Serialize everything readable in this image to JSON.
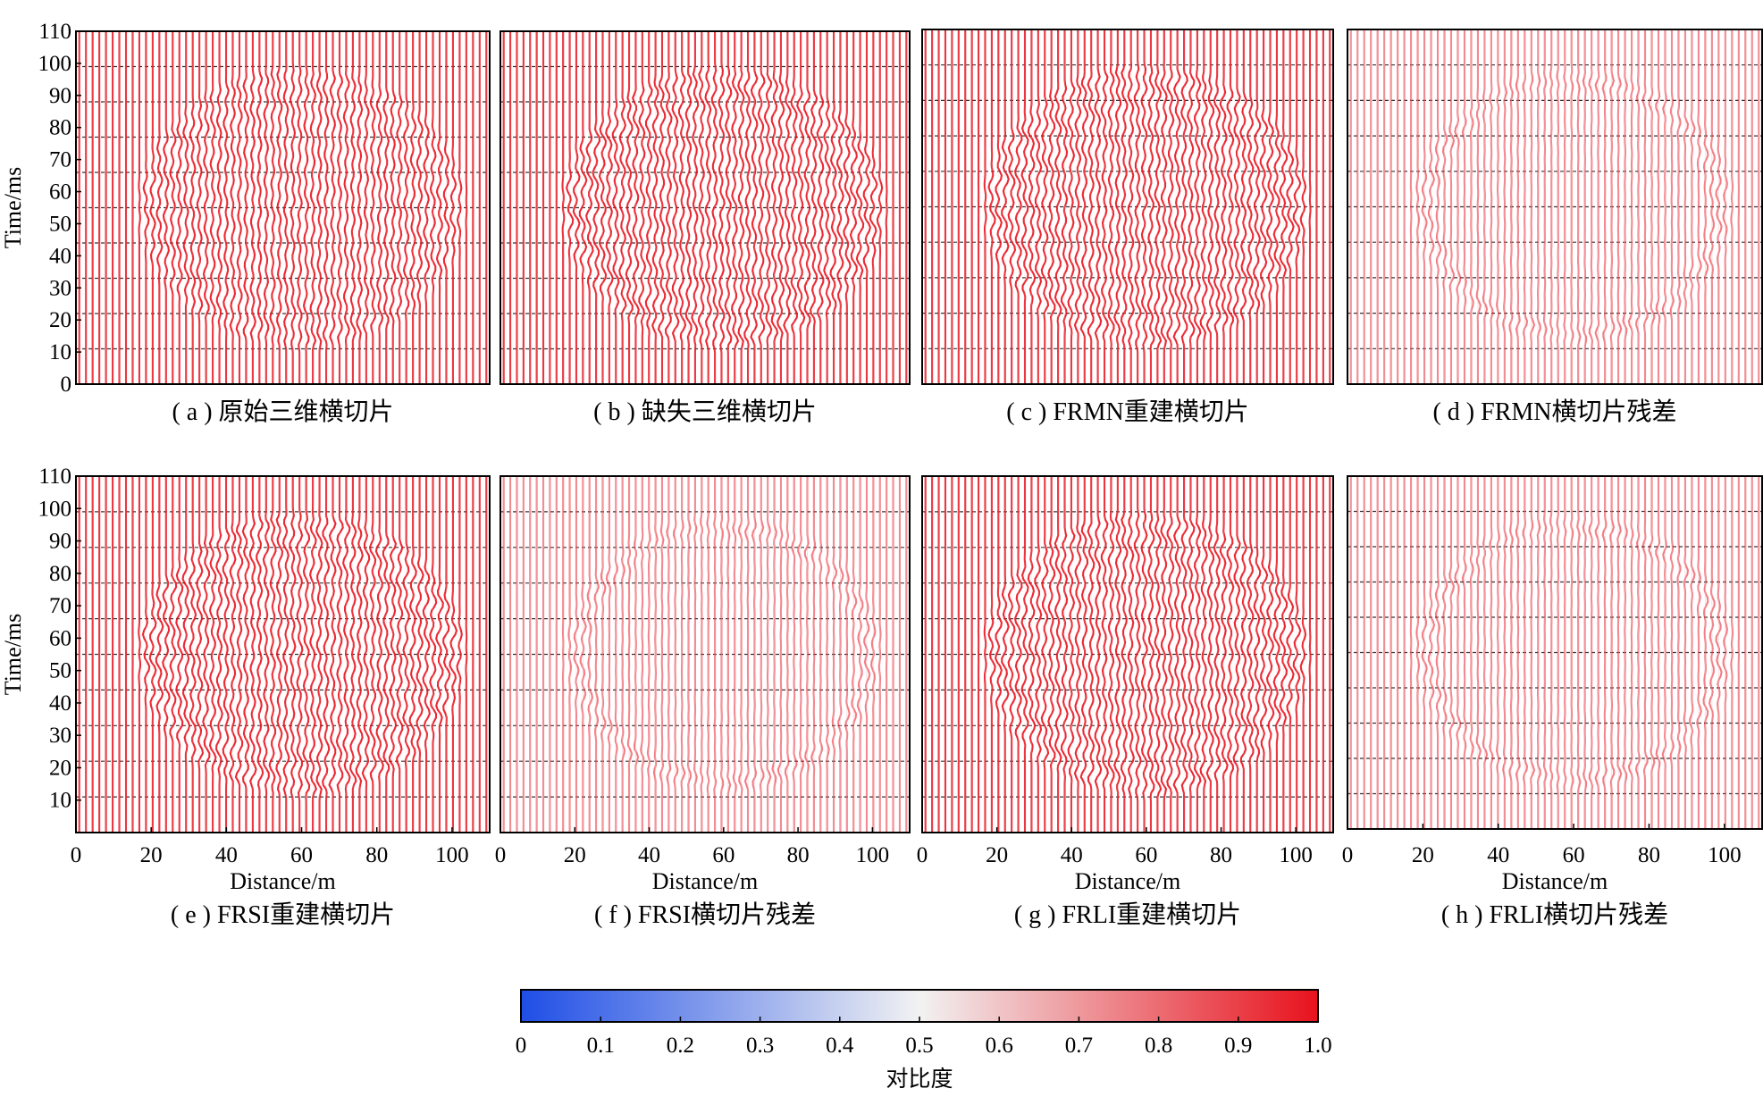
{
  "figure": {
    "colorbar": {
      "label": "对比度",
      "ticks": [
        "0",
        "0.1",
        "0.2",
        "0.3",
        "0.4",
        "0.5",
        "0.6",
        "0.7",
        "0.8",
        "0.9",
        "1.0"
      ],
      "colors": {
        "low": "#1f4ee6",
        "mid": "#f2f2f2",
        "high": "#e8121d"
      }
    }
  },
  "chart_data": [
    {
      "type": "heatmap",
      "panel": "a",
      "caption": "( a ) 原始三维横切片",
      "ylabel": "Time/ms",
      "xlabel": "",
      "ylim": [
        0,
        110
      ],
      "xlim": [
        0,
        110
      ],
      "grid": "horizontal-dashed",
      "yticks": [
        "0",
        "10",
        "20",
        "30",
        "40",
        "50",
        "60",
        "70",
        "80",
        "90",
        "100",
        "110"
      ],
      "xticks": [],
      "pattern": "full-ellipse-wiggle",
      "ellipse": {
        "center_x": 60,
        "center_t": 55,
        "radius_x": 41,
        "radius_t": 41
      },
      "amplitude": 0.8
    },
    {
      "type": "heatmap",
      "panel": "b",
      "caption": "( b ) 缺失三维横切片",
      "ylabel": "",
      "xlabel": "",
      "ylim": [
        0,
        110
      ],
      "xlim": [
        0,
        110
      ],
      "grid": "horizontal-dashed",
      "yticks": [],
      "xticks": [],
      "pattern": "ellipse-with-missing-traces",
      "ellipse": {
        "center_x": 60,
        "center_t": 55,
        "radius_x": 41,
        "radius_t": 41
      },
      "amplitude": 1.0
    },
    {
      "type": "heatmap",
      "panel": "c",
      "caption": "( c ) FRMN重建横切片",
      "ylabel": "",
      "xlabel": "",
      "ylim": [
        0,
        110
      ],
      "xlim": [
        0,
        110
      ],
      "grid": "horizontal-dashed",
      "yticks": [],
      "xticks": [],
      "pattern": "full-ellipse-wiggle",
      "ellipse": {
        "center_x": 60,
        "center_t": 55,
        "radius_x": 41,
        "radius_t": 41
      },
      "amplitude": 1.0
    },
    {
      "type": "heatmap",
      "panel": "d",
      "caption": "( d ) FRMN横切片残差",
      "ylabel": "",
      "xlabel": "",
      "ylim": [
        0,
        110
      ],
      "xlim": [
        0,
        110
      ],
      "grid": "horizontal-dashed",
      "yticks": [],
      "xticks": [],
      "pattern": "residual-ring",
      "ellipse": {
        "center_x": 60,
        "center_t": 55,
        "radius_x": 41,
        "radius_t": 41
      },
      "amplitude": 0.8
    },
    {
      "type": "heatmap",
      "panel": "e",
      "caption": "( e ) FRSI重建横切片",
      "ylabel": "Time/ms",
      "xlabel": "Distance/m",
      "ylim": [
        0,
        110
      ],
      "xlim": [
        0,
        110
      ],
      "grid": "horizontal-dashed",
      "yticks": [
        "10",
        "20",
        "30",
        "40",
        "50",
        "60",
        "70",
        "80",
        "90",
        "100",
        "110"
      ],
      "xticks": [
        "0",
        "20",
        "40",
        "60",
        "80",
        "100"
      ],
      "pattern": "full-ellipse-wiggle",
      "ellipse": {
        "center_x": 60,
        "center_t": 55,
        "radius_x": 41,
        "radius_t": 41
      },
      "amplitude": 1.0
    },
    {
      "type": "heatmap",
      "panel": "f",
      "caption": "( f ) FRSI横切片残差",
      "ylabel": "",
      "xlabel": "Distance/m",
      "ylim": [
        0,
        110
      ],
      "xlim": [
        0,
        110
      ],
      "grid": "horizontal-dashed",
      "yticks": [],
      "xticks": [
        "0",
        "20",
        "40",
        "60",
        "80",
        "100"
      ],
      "pattern": "residual-ring",
      "ellipse": {
        "center_x": 60,
        "center_t": 55,
        "radius_x": 41,
        "radius_t": 41
      },
      "amplitude": 0.8
    },
    {
      "type": "heatmap",
      "panel": "g",
      "caption": "( g ) FRLI重建横切片",
      "ylabel": "",
      "xlabel": "Distance/m",
      "ylim": [
        0,
        110
      ],
      "xlim": [
        0,
        110
      ],
      "grid": "horizontal-dashed",
      "yticks": [],
      "xticks": [
        "0",
        "20",
        "40",
        "60",
        "80",
        "100"
      ],
      "pattern": "full-ellipse-wiggle",
      "ellipse": {
        "center_x": 60,
        "center_t": 55,
        "radius_x": 41,
        "radius_t": 41
      },
      "amplitude": 1.0
    },
    {
      "type": "heatmap",
      "panel": "h",
      "caption": "( h ) FRLI横切片残差",
      "ylabel": "",
      "xlabel": "Distance/m",
      "ylim": [
        0,
        110
      ],
      "xlim": [
        0,
        110
      ],
      "grid": "horizontal-dashed",
      "yticks": [],
      "xticks": [
        "0",
        "20",
        "40",
        "60",
        "80",
        "100"
      ],
      "pattern": "residual-ring",
      "ellipse": {
        "center_x": 60,
        "center_t": 55,
        "radius_x": 41,
        "radius_t": 41
      },
      "amplitude": 0.8
    }
  ]
}
